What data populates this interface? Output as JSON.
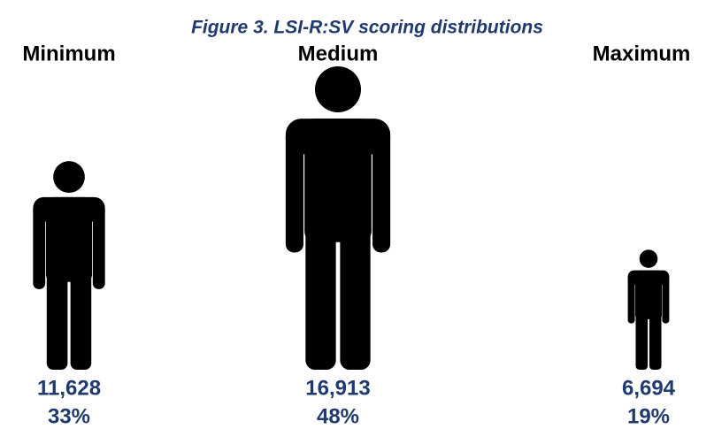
{
  "chart_data": {
    "type": "pictograph",
    "title": "Figure 3. LSI-R:SV scoring distributions",
    "categories": [
      "Minimum",
      "Medium",
      "Maximum"
    ],
    "values": [
      11628,
      16913,
      6694
    ],
    "value_labels": [
      "11,628",
      "16,913",
      "6,694"
    ],
    "percentages": [
      33,
      48,
      19
    ],
    "percentage_labels": [
      "33%",
      "48%",
      "19%"
    ],
    "color": "#000000"
  }
}
